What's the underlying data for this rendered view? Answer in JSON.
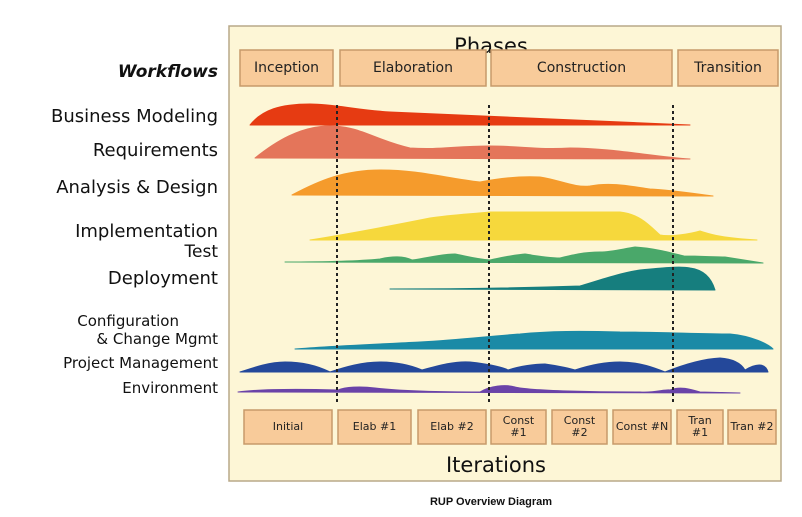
{
  "header": {
    "phases_title": "Phases",
    "workflows_title": "Workflows"
  },
  "phases": [
    "Inception",
    "Elaboration",
    "Construction",
    "Transition"
  ],
  "workflows": [
    {
      "label": "Business Modeling",
      "color": "#e63b12"
    },
    {
      "label": "Requirements",
      "color": "#e4755a"
    },
    {
      "label": "Analysis & Design",
      "color": "#f59b2c"
    },
    {
      "label": "Implementation",
      "color": "#f6d83c"
    },
    {
      "label": "Test",
      "color": "#4aa86a"
    },
    {
      "label": "Deployment",
      "color": "#167e7e"
    },
    {
      "label": "Configuration & Change Mgmt",
      "line1": "Configuration",
      "line2": "& Change Mgmt",
      "color": "#1b8aa6"
    },
    {
      "label": "Project Management",
      "color": "#24489a"
    },
    {
      "label": "Environment",
      "color": "#6a43a8"
    }
  ],
  "iterations": [
    "Initial",
    "Elab #1",
    "Elab #2",
    "Const #1",
    "Const #2",
    "Const #N",
    "Tran #1",
    "Tran #2"
  ],
  "footer": {
    "iterations_title": "Iterations",
    "caption": "RUP Overview Diagram"
  },
  "colors": {
    "panel": "#fdf6d6",
    "box_fill": "#f8cb9a",
    "box_border": "#c79a6a"
  }
}
